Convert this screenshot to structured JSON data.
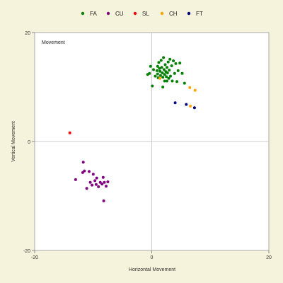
{
  "chart_data": {
    "type": "scatter",
    "panel_label": "Movement",
    "xlabel": "Horizontal Movement",
    "ylabel": "Vertical Movement",
    "xlim": [
      -20,
      20
    ],
    "ylim": [
      -20,
      20
    ],
    "x_ticks": [
      "-20",
      "0",
      "20"
    ],
    "y_ticks": [
      "20",
      "0",
      "-20"
    ],
    "legend_position": "top",
    "series": [
      {
        "name": "FA",
        "color": "#008000",
        "points": [
          [
            -0.7,
            12.3
          ],
          [
            -0.4,
            12.5
          ],
          [
            -0.2,
            13.8
          ],
          [
            0.1,
            10.2
          ],
          [
            0.3,
            13.2
          ],
          [
            0.6,
            12.0
          ],
          [
            0.9,
            13.0
          ],
          [
            1.0,
            12.4
          ],
          [
            1.1,
            11.7
          ],
          [
            1.2,
            14.5
          ],
          [
            1.3,
            13.4
          ],
          [
            1.4,
            12.9
          ],
          [
            1.5,
            12.1
          ],
          [
            1.6,
            14.9
          ],
          [
            1.7,
            13.6
          ],
          [
            1.8,
            12.6
          ],
          [
            1.9,
            11.8
          ],
          [
            2.0,
            15.4
          ],
          [
            2.1,
            13.2
          ],
          [
            2.2,
            12.3
          ],
          [
            2.2,
            11.1
          ],
          [
            2.3,
            14.1
          ],
          [
            2.4,
            12.8
          ],
          [
            2.5,
            11.9
          ],
          [
            2.6,
            13.6
          ],
          [
            2.7,
            12.6
          ],
          [
            2.8,
            14.6
          ],
          [
            2.9,
            11.6
          ],
          [
            3.0,
            13.1
          ],
          [
            3.1,
            15.1
          ],
          [
            3.2,
            12.0
          ],
          [
            3.4,
            13.9
          ],
          [
            3.5,
            11.1
          ],
          [
            3.7,
            14.8
          ],
          [
            3.9,
            12.5
          ],
          [
            4.1,
            14.3
          ],
          [
            4.3,
            11.0
          ],
          [
            4.5,
            13.0
          ],
          [
            4.8,
            14.4
          ],
          [
            5.2,
            12.5
          ],
          [
            5.6,
            10.7
          ],
          [
            1.0,
            13.8
          ],
          [
            1.9,
            10.0
          ],
          [
            2.6,
            11.1
          ]
        ]
      },
      {
        "name": "CU",
        "color": "#800080",
        "points": [
          [
            -11.7,
            -3.8
          ],
          [
            -11.8,
            -5.7
          ],
          [
            -11.5,
            -5.4
          ],
          [
            -13.0,
            -7.0
          ],
          [
            -10.7,
            -5.5
          ],
          [
            -10.5,
            -7.5
          ],
          [
            -10.2,
            -8.0
          ],
          [
            -10.0,
            -6.0
          ],
          [
            -9.7,
            -7.2
          ],
          [
            -9.5,
            -7.9
          ],
          [
            -9.4,
            -6.7
          ],
          [
            -9.1,
            -8.3
          ],
          [
            -8.8,
            -7.5
          ],
          [
            -8.5,
            -7.8
          ],
          [
            -8.3,
            -6.6
          ],
          [
            -8.1,
            -7.5
          ],
          [
            -7.8,
            -8.2
          ],
          [
            -7.5,
            -7.4
          ],
          [
            -11.1,
            -8.6
          ],
          [
            -8.2,
            -10.9
          ]
        ]
      },
      {
        "name": "SL",
        "color": "#ff0000",
        "points": [
          [
            -14.0,
            1.6
          ]
        ]
      },
      {
        "name": "CH",
        "color": "#ffa500",
        "points": [
          [
            1.4,
            11.6
          ],
          [
            6.5,
            9.9
          ],
          [
            7.4,
            9.4
          ],
          [
            6.6,
            6.5
          ]
        ]
      },
      {
        "name": "FT",
        "color": "#000080",
        "points": [
          [
            4.0,
            7.1
          ],
          [
            5.9,
            6.8
          ],
          [
            7.3,
            6.2
          ]
        ]
      }
    ]
  }
}
